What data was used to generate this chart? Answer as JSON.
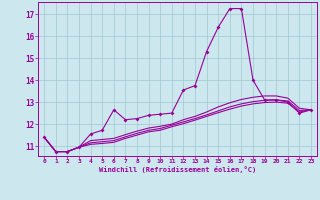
{
  "xlabel": "Windchill (Refroidissement éolien,°C)",
  "bg_color": "#cce8ee",
  "line_color": "#990099",
  "xlim": [
    -0.5,
    23.5
  ],
  "ylim": [
    10.55,
    17.55
  ],
  "yticks": [
    11,
    12,
    13,
    14,
    15,
    16,
    17
  ],
  "xticks": [
    0,
    1,
    2,
    3,
    4,
    5,
    6,
    7,
    8,
    9,
    10,
    11,
    12,
    13,
    14,
    15,
    16,
    17,
    18,
    19,
    20,
    21,
    22,
    23
  ],
  "line1_x": [
    0,
    1,
    2,
    3,
    4,
    5,
    6,
    7,
    8,
    9,
    10,
    11,
    12,
    13,
    14,
    15,
    16,
    17,
    18,
    19,
    20,
    21,
    22,
    23
  ],
  "line1_y": [
    11.4,
    10.75,
    10.75,
    10.95,
    11.55,
    11.72,
    12.65,
    12.2,
    12.25,
    12.4,
    12.45,
    12.5,
    13.55,
    13.75,
    15.3,
    16.4,
    17.25,
    17.25,
    14.0,
    13.1,
    13.1,
    13.0,
    12.5,
    12.65
  ],
  "line2_x": [
    0,
    1,
    2,
    3,
    4,
    5,
    6,
    7,
    8,
    9,
    10,
    11,
    12,
    13,
    14,
    15,
    16,
    17,
    18,
    19,
    20,
    21,
    22,
    23
  ],
  "line2_y": [
    11.4,
    10.75,
    10.75,
    10.95,
    11.25,
    11.3,
    11.35,
    11.52,
    11.68,
    11.82,
    11.9,
    12.0,
    12.2,
    12.35,
    12.55,
    12.78,
    12.97,
    13.12,
    13.22,
    13.28,
    13.28,
    13.18,
    12.72,
    12.65
  ],
  "line3_x": [
    0,
    1,
    2,
    3,
    4,
    5,
    6,
    7,
    8,
    9,
    10,
    11,
    12,
    13,
    14,
    15,
    16,
    17,
    18,
    19,
    20,
    21,
    22,
    23
  ],
  "line3_y": [
    11.4,
    10.75,
    10.75,
    10.95,
    11.15,
    11.2,
    11.25,
    11.42,
    11.58,
    11.72,
    11.8,
    11.95,
    12.1,
    12.25,
    12.42,
    12.6,
    12.78,
    12.92,
    13.02,
    13.08,
    13.1,
    13.05,
    12.62,
    12.65
  ],
  "line4_x": [
    0,
    1,
    2,
    3,
    4,
    5,
    6,
    7,
    8,
    9,
    10,
    11,
    12,
    13,
    14,
    15,
    16,
    17,
    18,
    19,
    20,
    21,
    22,
    23
  ],
  "line4_y": [
    11.4,
    10.75,
    10.75,
    10.95,
    11.08,
    11.12,
    11.17,
    11.35,
    11.5,
    11.65,
    11.72,
    11.88,
    12.02,
    12.18,
    12.35,
    12.52,
    12.68,
    12.82,
    12.92,
    12.98,
    13.0,
    12.95,
    12.55,
    12.65
  ]
}
